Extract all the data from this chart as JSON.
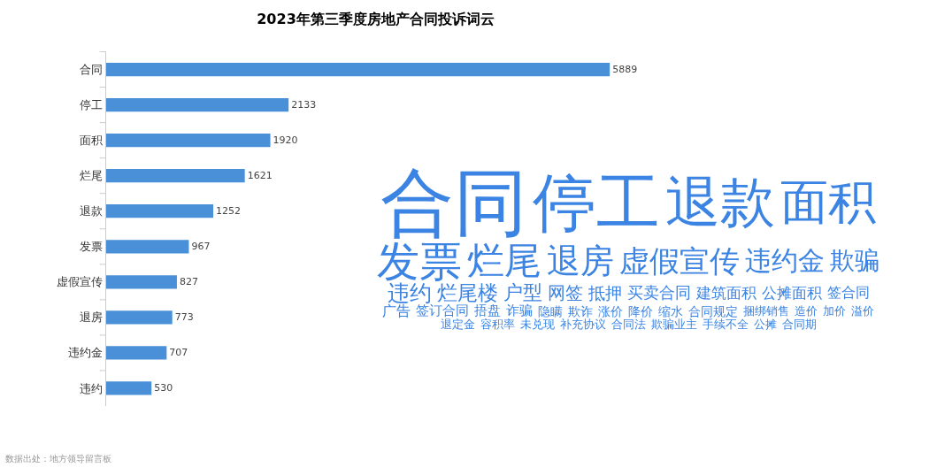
{
  "chart_data": [
    {
      "type": "bar",
      "title": "2023年第三季度房地产合同投诉词云",
      "orientation": "horizontal",
      "categories": [
        "合同",
        "停工",
        "面积",
        "烂尾",
        "退款",
        "发票",
        "虚假宣传",
        "退房",
        "违约金",
        "违约"
      ],
      "values": [
        5889,
        2133,
        1920,
        1621,
        1252,
        967,
        827,
        773,
        707,
        530
      ],
      "color": "#4a90d9",
      "data_labels": true,
      "grid": false,
      "tick_labels": "y",
      "annotations": [
        "数据出处：地方领导留言板"
      ]
    },
    {
      "type": "other",
      "color": "#3b84e3",
      "annotations": [
        "合同",
        "停工",
        "退款",
        "面积",
        "发票",
        "烂尾",
        "退房",
        "虚假宣传",
        "违约金",
        "欺骗",
        "违约",
        "烂尾楼",
        "户型",
        "网签",
        "抵押",
        "买卖合同",
        "建筑面积",
        "公摊面积",
        "签合同",
        "广告",
        "签订合同",
        "捂盘",
        "诈骗",
        "隐瞒",
        "欺诈",
        "涨价",
        "降价",
        "缩水",
        "合同规定",
        "捆绑销售",
        "造价",
        "加价",
        "溢价",
        "退定金",
        "容积率",
        "未兑现",
        "补充协议",
        "合同法",
        "欺骗业主",
        "手续不全",
        "公摊",
        "合同期"
      ]
    }
  ]
}
